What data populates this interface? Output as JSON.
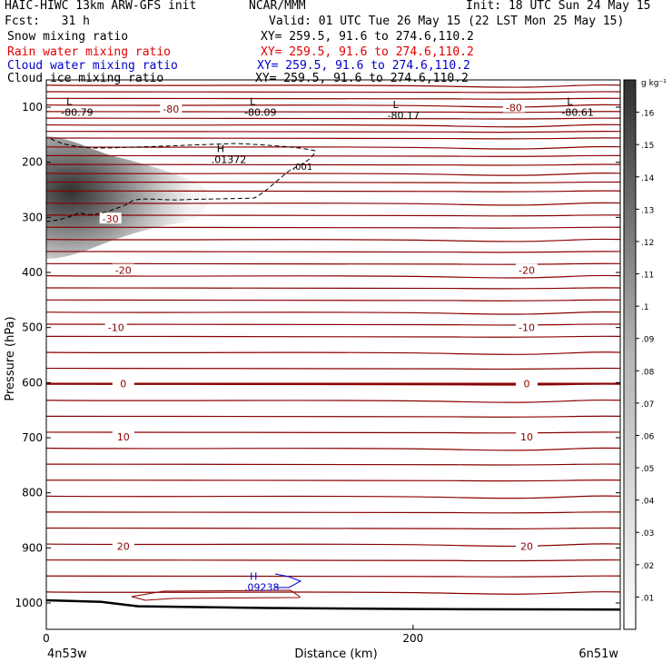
{
  "header": {
    "title_left": "HAIC-HIWC 13km ARW-GFS init",
    "title_mid": "NCAR/MMM",
    "init": "Init: 18 UTC Sun 24 May 15",
    "fcst": "Fcst:   31 h",
    "valid": "Valid: 01 UTC Tue 26 May 15 (22 LST Mon 25 May 15)"
  },
  "fields": [
    {
      "name": "Snow mixing ratio",
      "xy": "XY= 259.5, 91.6 to 274.6,110.2",
      "color": "#000000"
    },
    {
      "name": "Rain water mixing ratio",
      "xy": "XY= 259.5, 91.6 to 274.6,110.2",
      "color": "#e00000"
    },
    {
      "name": "Cloud water mixing ratio",
      "xy": "XY= 259.5, 91.6 to 274.6,110.2",
      "color": "#0000cc"
    },
    {
      "name": "Cloud ice mixing ratio",
      "xy": "XY= 259.5, 91.6 to 274.6,110.2",
      "color": "#000000"
    }
  ],
  "colorbar": {
    "unit_label": "g kg⁻¹",
    "ticks": [
      ".01",
      ".02",
      ".03",
      ".04",
      ".05",
      ".06",
      ".07",
      ".08",
      ".09",
      ".1",
      ".11",
      ".12",
      ".13",
      ".14",
      ".15",
      ".16"
    ]
  },
  "chart_data": {
    "type": "contour-cross-section",
    "xlabel": "Distance (km)",
    "ylabel": "Pressure (hPa)",
    "xlim": [
      0,
      313
    ],
    "ylim": [
      1050,
      50
    ],
    "xticks": [
      0,
      200
    ],
    "yticks": [
      100,
      200,
      300,
      400,
      500,
      600,
      700,
      800,
      900,
      1000
    ],
    "endpoint_left": "4n53w",
    "endpoint_right": "6n51w",
    "temperature_contour_color": "#8b0000",
    "temperature_labels": [
      {
        "text": "-80",
        "x": 68,
        "p": 103
      },
      {
        "text": "-80",
        "x": 255,
        "p": 101
      },
      {
        "text": "-30",
        "x": 35,
        "p": 303
      },
      {
        "text": "-20",
        "x": 42,
        "p": 396
      },
      {
        "text": "-20",
        "x": 262,
        "p": 396
      },
      {
        "text": "-10",
        "x": 38,
        "p": 500
      },
      {
        "text": "-10",
        "x": 262,
        "p": 500
      },
      {
        "text": "0",
        "x": 42,
        "p": 602
      },
      {
        "text": "0",
        "x": 262,
        "p": 602
      },
      {
        "text": "10",
        "x": 42,
        "p": 698
      },
      {
        "text": "10",
        "x": 262,
        "p": 698
      },
      {
        "text": "20",
        "x": 42,
        "p": 897
      },
      {
        "text": "20",
        "x": 262,
        "p": 897
      }
    ],
    "extrema": [
      {
        "kind": "L",
        "value": "-80.79",
        "x": 8,
        "p": 96,
        "color": "#000000"
      },
      {
        "kind": "L",
        "value": "-80.09",
        "x": 108,
        "p": 96,
        "color": "#000000"
      },
      {
        "kind": "L",
        "value": "-80.17",
        "x": 186,
        "p": 102,
        "color": "#000000"
      },
      {
        "kind": "L",
        "value": "-80.61",
        "x": 281,
        "p": 96,
        "color": "#000000"
      },
      {
        "kind": "H",
        "value": ".01372",
        "x": 90,
        "p": 182,
        "color": "#000000"
      },
      {
        "kind": "H",
        "value": ".09238",
        "x": 108,
        "p": 958,
        "color": "#0000cc"
      }
    ],
    "ice_contour_labels": [
      {
        "text": ".001",
        "x": 134,
        "p": 189
      }
    ],
    "ground_pressure": [
      {
        "x": 0,
        "p": 995
      },
      {
        "x": 30,
        "p": 998
      },
      {
        "x": 50,
        "p": 1006
      },
      {
        "x": 120,
        "p": 1009
      },
      {
        "x": 200,
        "p": 1011
      },
      {
        "x": 313,
        "p": 1012
      }
    ],
    "cloud_ice_shading": {
      "max_g_per_kg": 0.16,
      "region": "x 0-75 km, 150-350 hPa"
    }
  }
}
